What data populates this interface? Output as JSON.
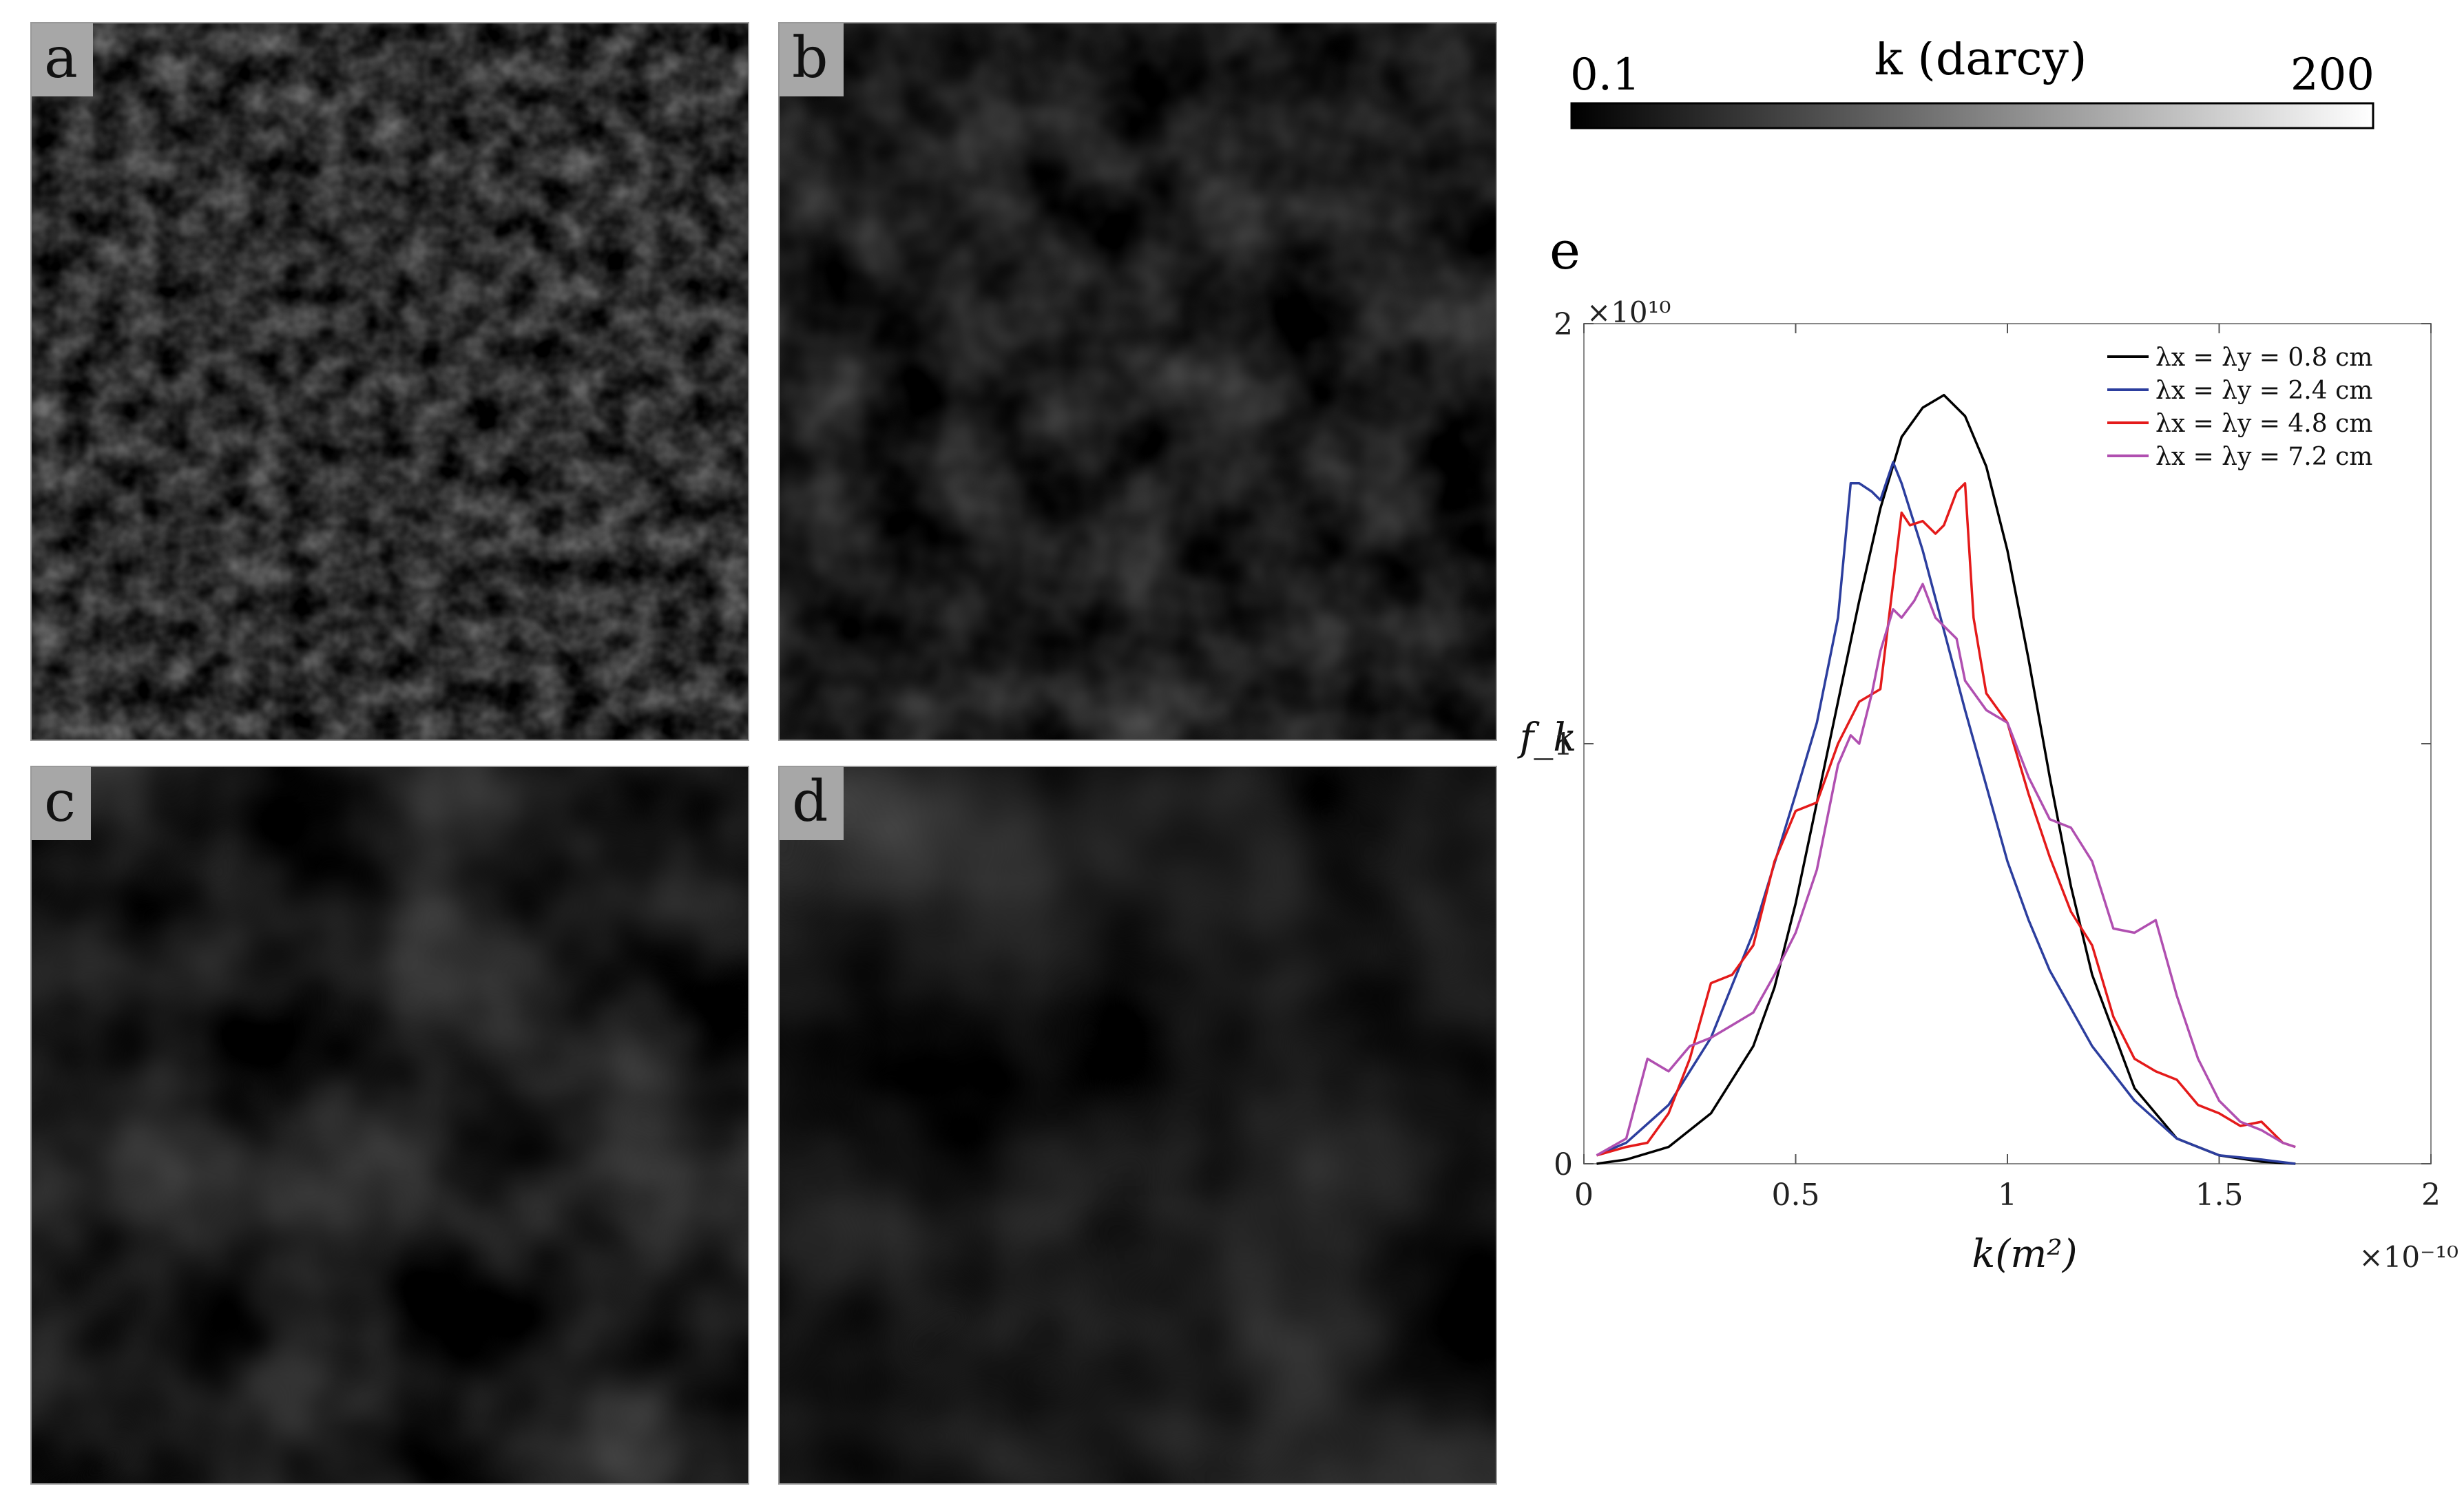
{
  "panels": [
    {
      "label": "a"
    },
    {
      "label": "b"
    },
    {
      "label": "c"
    },
    {
      "label": "d"
    }
  ],
  "colorbar": {
    "title": "k (darcy)",
    "min_label": "0.1",
    "max_label": "200",
    "colors": [
      "#000000",
      "#ffffff"
    ]
  },
  "chart_data": {
    "type": "line",
    "panel_label": "e",
    "xlabel": "k(m²)",
    "ylabel": "f_k",
    "x_multiplier": "×10⁻¹⁰",
    "y_multiplier": "×10¹⁰",
    "xlim": [
      0,
      2
    ],
    "ylim": [
      0,
      2
    ],
    "xticks": [
      "0",
      "0.5",
      "1",
      "1.5",
      "2"
    ],
    "yticks": [
      "0",
      "1",
      "2"
    ],
    "grid": false,
    "legend_position": "top-right",
    "series": [
      {
        "name": "λx = λy = 0.8 cm",
        "color": "#000000",
        "x": [
          0.03,
          0.1,
          0.2,
          0.3,
          0.4,
          0.45,
          0.5,
          0.55,
          0.6,
          0.65,
          0.7,
          0.75,
          0.8,
          0.85,
          0.9,
          0.95,
          1.0,
          1.05,
          1.1,
          1.15,
          1.2,
          1.3,
          1.4,
          1.5,
          1.6,
          1.68
        ],
        "y": [
          0.0,
          0.01,
          0.04,
          0.12,
          0.28,
          0.42,
          0.62,
          0.86,
          1.1,
          1.34,
          1.56,
          1.73,
          1.8,
          1.83,
          1.78,
          1.66,
          1.46,
          1.2,
          0.92,
          0.66,
          0.45,
          0.18,
          0.06,
          0.02,
          0.005,
          0.0
        ]
      },
      {
        "name": "λx = λy = 2.4 cm",
        "color": "#2c3e9e",
        "x": [
          0.03,
          0.1,
          0.2,
          0.3,
          0.4,
          0.5,
          0.55,
          0.6,
          0.63,
          0.65,
          0.68,
          0.7,
          0.73,
          0.75,
          0.8,
          0.85,
          0.9,
          0.95,
          1.0,
          1.05,
          1.1,
          1.2,
          1.3,
          1.4,
          1.5,
          1.6,
          1.68
        ],
        "y": [
          0.02,
          0.05,
          0.14,
          0.3,
          0.55,
          0.88,
          1.05,
          1.3,
          1.62,
          1.62,
          1.6,
          1.58,
          1.67,
          1.62,
          1.46,
          1.27,
          1.08,
          0.9,
          0.72,
          0.58,
          0.46,
          0.28,
          0.15,
          0.06,
          0.02,
          0.01,
          0.0
        ]
      },
      {
        "name": "λx = λy = 4.8 cm",
        "color": "#e41a1a",
        "x": [
          0.03,
          0.1,
          0.15,
          0.2,
          0.25,
          0.3,
          0.35,
          0.4,
          0.45,
          0.5,
          0.55,
          0.6,
          0.65,
          0.7,
          0.75,
          0.77,
          0.8,
          0.83,
          0.85,
          0.88,
          0.9,
          0.92,
          0.95,
          1.0,
          1.05,
          1.1,
          1.15,
          1.2,
          1.25,
          1.3,
          1.35,
          1.4,
          1.45,
          1.5,
          1.55,
          1.6,
          1.65,
          1.68
        ],
        "y": [
          0.02,
          0.04,
          0.05,
          0.12,
          0.25,
          0.43,
          0.45,
          0.52,
          0.72,
          0.84,
          0.86,
          1.0,
          1.1,
          1.13,
          1.55,
          1.52,
          1.53,
          1.5,
          1.52,
          1.6,
          1.62,
          1.3,
          1.12,
          1.05,
          0.88,
          0.73,
          0.6,
          0.52,
          0.35,
          0.25,
          0.22,
          0.2,
          0.14,
          0.12,
          0.09,
          0.1,
          0.05,
          0.04
        ]
      },
      {
        "name": "λx = λy = 7.2 cm",
        "color": "#b04fb0",
        "x": [
          0.03,
          0.1,
          0.15,
          0.2,
          0.25,
          0.3,
          0.35,
          0.4,
          0.45,
          0.5,
          0.55,
          0.6,
          0.63,
          0.65,
          0.68,
          0.7,
          0.73,
          0.75,
          0.78,
          0.8,
          0.83,
          0.85,
          0.88,
          0.9,
          0.95,
          1.0,
          1.05,
          1.1,
          1.15,
          1.2,
          1.25,
          1.3,
          1.35,
          1.4,
          1.45,
          1.5,
          1.55,
          1.6,
          1.65,
          1.68
        ],
        "y": [
          0.02,
          0.06,
          0.25,
          0.22,
          0.28,
          0.3,
          0.33,
          0.36,
          0.45,
          0.55,
          0.7,
          0.95,
          1.02,
          1.0,
          1.12,
          1.22,
          1.32,
          1.3,
          1.34,
          1.38,
          1.3,
          1.28,
          1.25,
          1.15,
          1.08,
          1.05,
          0.92,
          0.82,
          0.8,
          0.72,
          0.56,
          0.55,
          0.58,
          0.4,
          0.25,
          0.15,
          0.1,
          0.08,
          0.05,
          0.04
        ]
      }
    ]
  }
}
